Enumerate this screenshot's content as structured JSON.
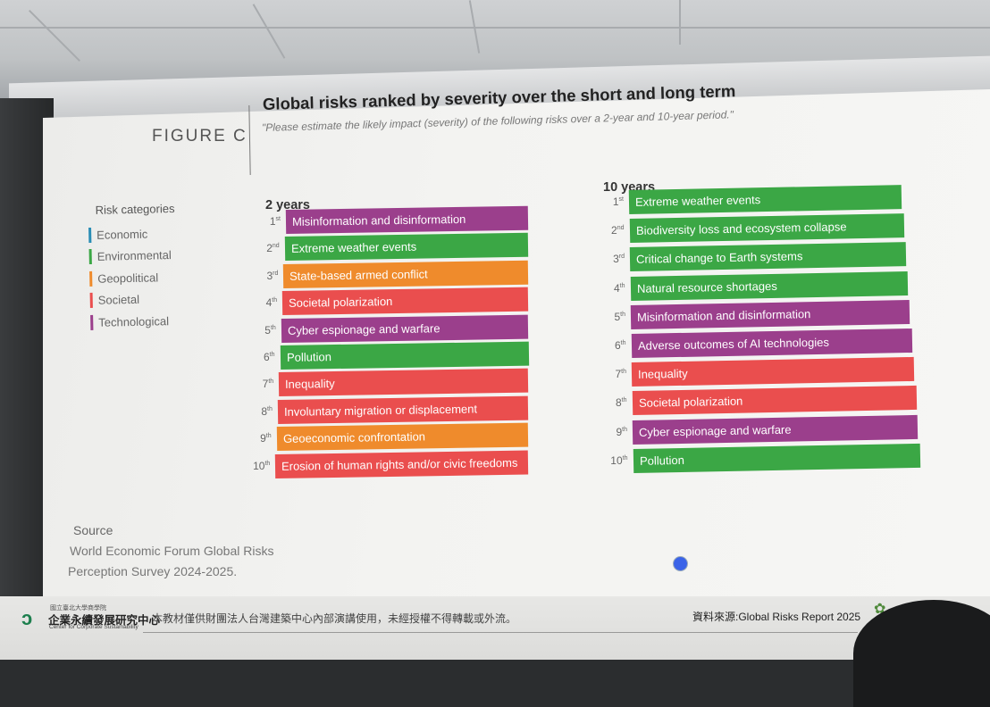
{
  "figure": {
    "label": "FIGURE C",
    "title": "Global risks ranked by severity over the short and long term",
    "subtitle": "\"Please estimate the likely impact (severity) of the following risks over a 2-year and 10-year period.\""
  },
  "legend": {
    "heading": "Risk categories",
    "items": [
      {
        "label": "Economic",
        "color": "#2a8db5"
      },
      {
        "label": "Environmental",
        "color": "#3ba745"
      },
      {
        "label": "Geopolitical",
        "color": "#ef8b2c"
      },
      {
        "label": "Societal",
        "color": "#ea4e4e"
      },
      {
        "label": "Technological",
        "color": "#9b3f8c"
      }
    ]
  },
  "colors": {
    "Environmental": "#3ba745",
    "Geopolitical": "#ef8b2c",
    "Societal": "#ea4e4e",
    "Technological": "#9b3f8c"
  },
  "two_year": {
    "heading": "2 years",
    "ranks": [
      {
        "n": "1",
        "suf": "st",
        "label": "Misinformation and disinformation",
        "cat": "Technological"
      },
      {
        "n": "2",
        "suf": "nd",
        "label": "Extreme weather events",
        "cat": "Environmental"
      },
      {
        "n": "3",
        "suf": "rd",
        "label": "State-based armed conflict",
        "cat": "Geopolitical"
      },
      {
        "n": "4",
        "suf": "th",
        "label": "Societal polarization",
        "cat": "Societal"
      },
      {
        "n": "5",
        "suf": "th",
        "label": "Cyber espionage and warfare",
        "cat": "Technological"
      },
      {
        "n": "6",
        "suf": "th",
        "label": "Pollution",
        "cat": "Environmental"
      },
      {
        "n": "7",
        "suf": "th",
        "label": "Inequality",
        "cat": "Societal"
      },
      {
        "n": "8",
        "suf": "th",
        "label": "Involuntary migration or displacement",
        "cat": "Societal"
      },
      {
        "n": "9",
        "suf": "th",
        "label": "Geoeconomic confrontation",
        "cat": "Geopolitical"
      },
      {
        "n": "10",
        "suf": "th",
        "label": "Erosion of human rights and/or civic freedoms",
        "cat": "Societal"
      }
    ]
  },
  "ten_year": {
    "heading": "10 years",
    "ranks": [
      {
        "n": "1",
        "suf": "st",
        "label": "Extreme weather events",
        "cat": "Environmental"
      },
      {
        "n": "2",
        "suf": "nd",
        "label": "Biodiversity loss and ecosystem collapse",
        "cat": "Environmental"
      },
      {
        "n": "3",
        "suf": "rd",
        "label": "Critical change to Earth systems",
        "cat": "Environmental"
      },
      {
        "n": "4",
        "suf": "th",
        "label": "Natural resource shortages",
        "cat": "Environmental"
      },
      {
        "n": "5",
        "suf": "th",
        "label": "Misinformation and disinformation",
        "cat": "Technological"
      },
      {
        "n": "6",
        "suf": "th",
        "label": "Adverse outcomes of AI technologies",
        "cat": "Technological"
      },
      {
        "n": "7",
        "suf": "th",
        "label": "Inequality",
        "cat": "Societal"
      },
      {
        "n": "8",
        "suf": "th",
        "label": "Societal polarization",
        "cat": "Societal"
      },
      {
        "n": "9",
        "suf": "th",
        "label": "Cyber espionage and warfare",
        "cat": "Technological"
      },
      {
        "n": "10",
        "suf": "th",
        "label": "Pollution",
        "cat": "Environmental"
      }
    ]
  },
  "source": {
    "heading": "Source",
    "line1": "World Economic Forum Global Risks",
    "line2": "Perception Survey 2024-2025."
  },
  "footer": {
    "logo_small": "國立臺北大學商學院",
    "logo_cn": "企業永續發展研究中心",
    "logo_en": "Center for Corporate Sustainability",
    "notice": "本教材僅供財團法人台灣建築中心內部演講使用，未經授權不得轉載或外流。",
    "source_right": "資料來源:Global Risks Report 2025"
  }
}
